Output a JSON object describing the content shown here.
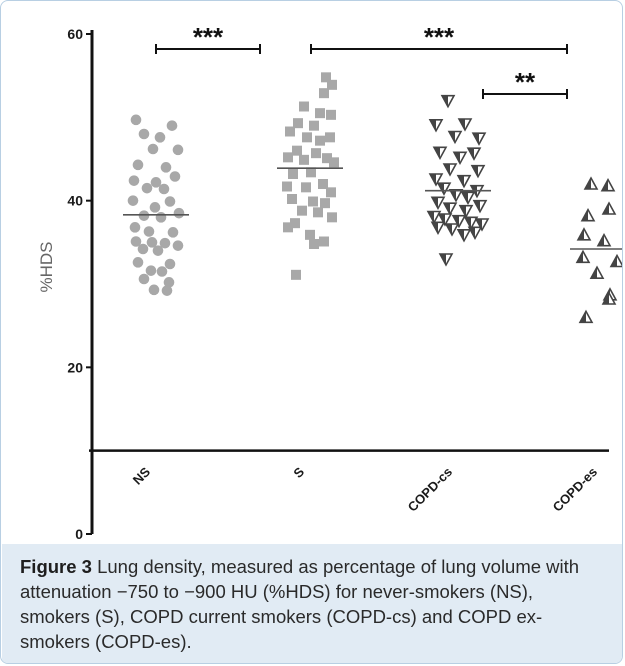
{
  "chart_data": {
    "type": "scatter",
    "ylabel": "%HDS",
    "ylim": [
      0,
      60
    ],
    "yticks": [
      0,
      20,
      40,
      60
    ],
    "categories": [
      "NS",
      "S",
      "COPD-cs",
      "COPD-es"
    ],
    "marker_colors": {
      "NS": "#a8a8a8",
      "S": "#a8a8a8",
      "COPD-cs": "#444444",
      "COPD-es": "#444444"
    },
    "series": [
      {
        "name": "NS",
        "marker": "circle",
        "mean": 38.3,
        "points": [
          [
            -0.2,
            49.7
          ],
          [
            0.16,
            49.0
          ],
          [
            -0.12,
            48.0
          ],
          [
            0.04,
            47.6
          ],
          [
            -0.03,
            46.2
          ],
          [
            0.22,
            46.1
          ],
          [
            -0.18,
            44.3
          ],
          [
            0.1,
            44.0
          ],
          [
            0.19,
            42.9
          ],
          [
            -0.22,
            42.4
          ],
          [
            0.0,
            42.2
          ],
          [
            -0.09,
            41.5
          ],
          [
            0.08,
            41.4
          ],
          [
            -0.23,
            40.0
          ],
          [
            0.14,
            39.9
          ],
          [
            -0.01,
            39.2
          ],
          [
            0.23,
            38.5
          ],
          [
            -0.12,
            38.2
          ],
          [
            0.05,
            38.0
          ],
          [
            -0.21,
            36.8
          ],
          [
            0.17,
            36.2
          ],
          [
            -0.07,
            36.3
          ],
          [
            -0.2,
            35.1
          ],
          [
            -0.04,
            35.0
          ],
          [
            0.09,
            34.9
          ],
          [
            0.22,
            34.6
          ],
          [
            -0.13,
            34.2
          ],
          [
            0.02,
            34.0
          ],
          [
            -0.18,
            32.6
          ],
          [
            0.14,
            32.4
          ],
          [
            -0.05,
            31.6
          ],
          [
            0.06,
            31.5
          ],
          [
            -0.12,
            30.6
          ],
          [
            0.13,
            30.2
          ],
          [
            -0.02,
            29.3
          ],
          [
            0.11,
            29.2
          ]
        ]
      },
      {
        "name": "S",
        "marker": "square",
        "mean": 43.9,
        "points": [
          [
            0.16,
            54.8
          ],
          [
            0.22,
            53.9
          ],
          [
            0.14,
            52.9
          ],
          [
            -0.06,
            51.3
          ],
          [
            0.1,
            50.5
          ],
          [
            0.21,
            50.3
          ],
          [
            -0.12,
            49.3
          ],
          [
            0.04,
            49.0
          ],
          [
            -0.2,
            48.3
          ],
          [
            0.2,
            47.6
          ],
          [
            -0.03,
            47.6
          ],
          [
            0.1,
            47.2
          ],
          [
            -0.13,
            46.0
          ],
          [
            0.06,
            45.7
          ],
          [
            -0.22,
            45.2
          ],
          [
            0.17,
            45.1
          ],
          [
            -0.06,
            44.9
          ],
          [
            0.24,
            44.6
          ],
          [
            0.01,
            43.4
          ],
          [
            -0.17,
            43.2
          ],
          [
            0.13,
            42.0
          ],
          [
            -0.23,
            41.7
          ],
          [
            -0.04,
            41.6
          ],
          [
            0.21,
            41.0
          ],
          [
            -0.18,
            40.2
          ],
          [
            0.03,
            39.9
          ],
          [
            0.15,
            39.7
          ],
          [
            -0.08,
            38.8
          ],
          [
            0.22,
            38.0
          ],
          [
            0.08,
            38.6
          ],
          [
            -0.15,
            37.3
          ],
          [
            -0.22,
            36.8
          ],
          [
            0.0,
            35.9
          ],
          [
            0.14,
            35.1
          ],
          [
            0.04,
            34.8
          ],
          [
            -0.14,
            31.1
          ]
        ]
      },
      {
        "name": "COPD-cs",
        "marker": "triangle-down",
        "mean": 41.2,
        "points": [
          [
            -0.1,
            52.0
          ],
          [
            -0.22,
            49.1
          ],
          [
            0.07,
            49.2
          ],
          [
            -0.03,
            47.7
          ],
          [
            0.21,
            47.5
          ],
          [
            -0.18,
            45.8
          ],
          [
            0.16,
            45.7
          ],
          [
            0.02,
            45.2
          ],
          [
            -0.08,
            43.8
          ],
          [
            0.2,
            43.6
          ],
          [
            -0.22,
            42.6
          ],
          [
            0.06,
            42.4
          ],
          [
            -0.14,
            41.5
          ],
          [
            0.19,
            41.2
          ],
          [
            -0.02,
            40.7
          ],
          [
            0.1,
            40.4
          ],
          [
            -0.2,
            39.8
          ],
          [
            0.22,
            39.4
          ],
          [
            -0.08,
            39.1
          ],
          [
            0.08,
            38.8
          ],
          [
            -0.24,
            38.1
          ],
          [
            -0.13,
            37.8
          ],
          [
            0.01,
            37.6
          ],
          [
            0.13,
            37.4
          ],
          [
            0.24,
            37.2
          ],
          [
            -0.2,
            36.8
          ],
          [
            -0.06,
            36.6
          ],
          [
            0.17,
            36.2
          ],
          [
            0.06,
            35.9
          ],
          [
            -0.12,
            33.0
          ]
        ]
      },
      {
        "name": "COPD-es",
        "marker": "triangle-up",
        "mean": 34.2,
        "points": [
          [
            -0.12,
            42.0
          ],
          [
            0.05,
            41.8
          ],
          [
            0.06,
            39.0
          ],
          [
            -0.15,
            38.2
          ],
          [
            -0.19,
            35.9
          ],
          [
            0.01,
            35.2
          ],
          [
            -0.2,
            33.2
          ],
          [
            0.14,
            32.7
          ],
          [
            -0.06,
            31.3
          ],
          [
            0.07,
            28.7
          ],
          [
            0.06,
            28.2
          ],
          [
            -0.17,
            26.0
          ]
        ]
      }
    ],
    "annotations": [
      {
        "from": "NS",
        "to": "S",
        "y": 58.2,
        "label": "***"
      },
      {
        "from": "S",
        "to": "COPD-es",
        "y": 58.2,
        "label": "***"
      },
      {
        "from": "COPD-cs",
        "to": "COPD-es",
        "y": 52.8,
        "label": "**"
      }
    ]
  },
  "caption": {
    "label": "Figure 3",
    "text": " Lung density, measured as percentage of lung volume with attenuation −750 to −900 HU (%HDS) for never-smokers (NS), smokers (S), COPD current smokers (COPD-cs) and COPD ex-smokers (COPD-es)."
  }
}
